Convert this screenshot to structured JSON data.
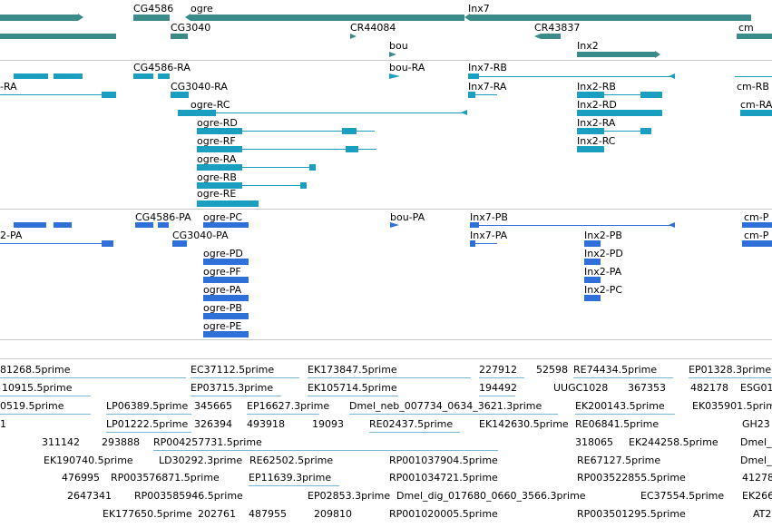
{
  "colors": {
    "gene": "#3a8b8a",
    "transcript": "#1a9fc0",
    "protein": "#2f6fd8",
    "est": "#7ab6da",
    "separator": "#c8c8c8"
  },
  "genes": [
    {
      "label": "CG4586"
    },
    {
      "label": "ogre"
    },
    {
      "label": "Inx7"
    },
    {
      "label": "CG3040"
    },
    {
      "label": "CR44084"
    },
    {
      "label": "CR43837"
    },
    {
      "label": "cm"
    },
    {
      "label": "bou"
    },
    {
      "label": "Inx2"
    }
  ],
  "transcripts": [
    {
      "label": "-RA"
    },
    {
      "label": "CG4586-RA"
    },
    {
      "label": "bou-RA"
    },
    {
      "label": "Inx7-RB"
    },
    {
      "label": "cm-RB"
    },
    {
      "label": "CG3040-RA"
    },
    {
      "label": "Inx7-RA"
    },
    {
      "label": "Inx2-RB"
    },
    {
      "label": "ogre-RC"
    },
    {
      "label": "Inx2-RD"
    },
    {
      "label": "cm-RA"
    },
    {
      "label": "ogre-RD"
    },
    {
      "label": "Inx2-RA"
    },
    {
      "label": "ogre-RF"
    },
    {
      "label": "Inx2-RC"
    },
    {
      "label": "ogre-RA"
    },
    {
      "label": "ogre-RB"
    },
    {
      "label": "ogre-RE"
    }
  ],
  "proteins": [
    {
      "label": "CG4586-PA"
    },
    {
      "label": "ogre-PC"
    },
    {
      "label": "bou-PA"
    },
    {
      "label": "Inx7-PB"
    },
    {
      "label": "cm-P"
    },
    {
      "label": "2-PA"
    },
    {
      "label": "CG3040-PA"
    },
    {
      "label": "Inx7-PA"
    },
    {
      "label": "Inx2-PB"
    },
    {
      "label": "cm-P"
    },
    {
      "label": "ogre-PD"
    },
    {
      "label": "Inx2-PD"
    },
    {
      "label": "ogre-PF"
    },
    {
      "label": "Inx2-PA"
    },
    {
      "label": "ogre-PA"
    },
    {
      "label": "Inx2-PC"
    },
    {
      "label": "ogre-PB"
    },
    {
      "label": "ogre-PE"
    }
  ],
  "ests": [
    {
      "label": "81268.5prime"
    },
    {
      "label": "EC37112.5prime"
    },
    {
      "label": "EK173847.5prime"
    },
    {
      "label": "227912"
    },
    {
      "label": "52598"
    },
    {
      "label": "RE74434.5prime"
    },
    {
      "label": "EP01328.3prime"
    },
    {
      "label": "10915.5prime"
    },
    {
      "label": "EP03715.3prime"
    },
    {
      "label": "EK105714.5prime"
    },
    {
      "label": "194492"
    },
    {
      "label": "UUGC1028"
    },
    {
      "label": "367353"
    },
    {
      "label": "482178"
    },
    {
      "label": "ESG01"
    },
    {
      "label": "0519.5prime"
    },
    {
      "label": "LP06389.5prime"
    },
    {
      "label": "345665"
    },
    {
      "label": "EP16627.3prime"
    },
    {
      "label": "Dmel_neb_007734_0634_3621.3prime"
    },
    {
      "label": "EK200143.5prime"
    },
    {
      "label": "EK035901.5prime"
    },
    {
      "label": "1"
    },
    {
      "label": "LP01222.5prime"
    },
    {
      "label": "326394"
    },
    {
      "label": "493918"
    },
    {
      "label": "19093"
    },
    {
      "label": "RE02437.5prime"
    },
    {
      "label": "EK142630.5prime"
    },
    {
      "label": "RE06841.5prime"
    },
    {
      "label": "GH23"
    },
    {
      "label": "311142"
    },
    {
      "label": "293888"
    },
    {
      "label": "RP004257731.5prime"
    },
    {
      "label": "318065"
    },
    {
      "label": "EK244258.5prime"
    },
    {
      "label": "Dmel_"
    },
    {
      "label": "EK190740.5prime"
    },
    {
      "label": "LD30292.3prime"
    },
    {
      "label": "RE62502.5prime"
    },
    {
      "label": "RP001037904.5prime"
    },
    {
      "label": "RE67127.5prime"
    },
    {
      "label": "Dmel_"
    },
    {
      "label": "476995"
    },
    {
      "label": "RP003576871.5prime"
    },
    {
      "label": "EP11639.3prime"
    },
    {
      "label": "RP001034721.5prime"
    },
    {
      "label": "RP003522855.5prime"
    },
    {
      "label": "41278"
    },
    {
      "label": "2647341"
    },
    {
      "label": "RP003585946.5prime"
    },
    {
      "label": "EP02853.3prime"
    },
    {
      "label": "Dmel_dig_017680_0660_3566.3prime"
    },
    {
      "label": "EC37554.5prime"
    },
    {
      "label": "EK266"
    },
    {
      "label": "EK177650.5prime"
    },
    {
      "label": "202761"
    },
    {
      "label": "487955"
    },
    {
      "label": "209810"
    },
    {
      "label": "RP001020005.5prime"
    },
    {
      "label": "RP003501295.5prime"
    },
    {
      "label": "AT2"
    }
  ]
}
